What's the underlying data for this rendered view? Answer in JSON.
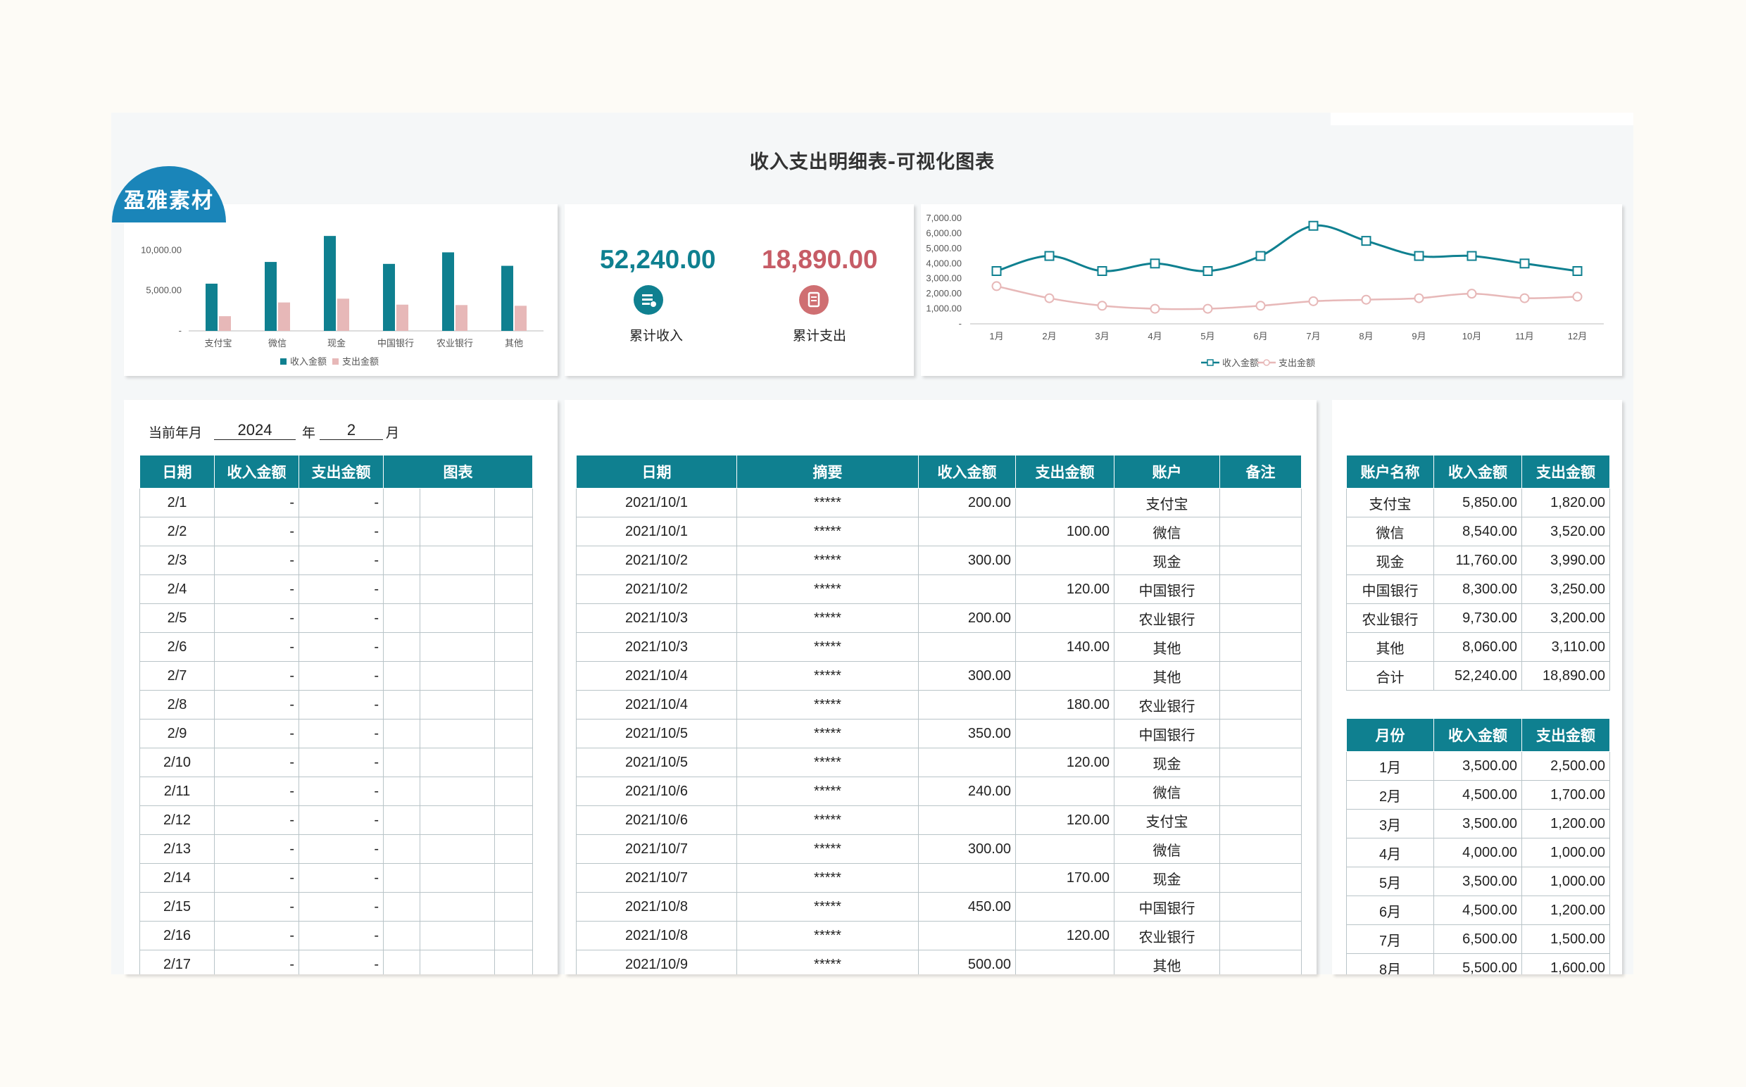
{
  "page": {
    "title": "收入支出明细表-可视化图表",
    "logo_text": "盈雅素材"
  },
  "colors": {
    "teal": "#0f8090",
    "pink": "#e7b8b8",
    "income_kpi": "#0f8090",
    "expense_kpi": "#c65c66",
    "logo_blue": "#1a85b9"
  },
  "kpi": {
    "income": {
      "value": "52,240.00",
      "label": "累计收入",
      "icon": "wallet-icon"
    },
    "expense": {
      "value": "18,890.00",
      "label": "累计支出",
      "icon": "receipt-icon"
    }
  },
  "bar_chart": {
    "chart_data": {
      "type": "bar",
      "categories": [
        "支付宝",
        "微信",
        "现金",
        "中国银行",
        "农业银行",
        "其他"
      ],
      "series": [
        {
          "name": "收入金额",
          "values": [
            5850,
            8540,
            11760,
            8300,
            9730,
            8060
          ]
        },
        {
          "name": "支出金额",
          "values": [
            1820,
            3520,
            3990,
            3250,
            3200,
            3110
          ]
        }
      ],
      "ylim": [
        0,
        15000
      ],
      "yticks": [
        "-",
        "5,000.00",
        "10,000.00"
      ],
      "legend": "bottom"
    }
  },
  "line_chart": {
    "chart_data": {
      "type": "line",
      "categories": [
        "1月",
        "2月",
        "3月",
        "4月",
        "5月",
        "6月",
        "7月",
        "8月",
        "9月",
        "10月",
        "11月",
        "12月"
      ],
      "series": [
        {
          "name": "收入金额",
          "values": [
            3500,
            4500,
            3500,
            4000,
            3500,
            4500,
            6500,
            5500,
            4500,
            4500,
            4000,
            3500
          ]
        },
        {
          "name": "支出金额",
          "values": [
            2500,
            1700,
            1200,
            1000,
            1000,
            1200,
            1500,
            1600,
            1700,
            2000,
            1700,
            1800
          ]
        }
      ],
      "ylim": [
        0,
        7000
      ],
      "yticks": [
        "-",
        "1,000.00",
        "2,000.00",
        "3,000.00",
        "4,000.00",
        "5,000.00",
        "6,000.00",
        "7,000.00"
      ],
      "legend": "bottom"
    }
  },
  "daily": {
    "current_label": "当前年月",
    "year": "2024",
    "year_unit": "年",
    "month": "2",
    "month_unit": "月",
    "headers": [
      "日期",
      "收入金额",
      "支出金额",
      "图表"
    ],
    "rows": [
      [
        "2/1",
        "-",
        "-"
      ],
      [
        "2/2",
        "-",
        "-"
      ],
      [
        "2/3",
        "-",
        "-"
      ],
      [
        "2/4",
        "-",
        "-"
      ],
      [
        "2/5",
        "-",
        "-"
      ],
      [
        "2/6",
        "-",
        "-"
      ],
      [
        "2/7",
        "-",
        "-"
      ],
      [
        "2/8",
        "-",
        "-"
      ],
      [
        "2/9",
        "-",
        "-"
      ],
      [
        "2/10",
        "-",
        "-"
      ],
      [
        "2/11",
        "-",
        "-"
      ],
      [
        "2/12",
        "-",
        "-"
      ],
      [
        "2/13",
        "-",
        "-"
      ],
      [
        "2/14",
        "-",
        "-"
      ],
      [
        "2/15",
        "-",
        "-"
      ],
      [
        "2/16",
        "-",
        "-"
      ],
      [
        "2/17",
        "-",
        "-"
      ]
    ]
  },
  "details": {
    "headers": [
      "日期",
      "摘要",
      "收入金额",
      "支出金额",
      "账户",
      "备注"
    ],
    "rows": [
      [
        "2021/10/1",
        "*****",
        "200.00",
        "",
        "支付宝",
        ""
      ],
      [
        "2021/10/1",
        "*****",
        "",
        "100.00",
        "微信",
        ""
      ],
      [
        "2021/10/2",
        "*****",
        "300.00",
        "",
        "现金",
        ""
      ],
      [
        "2021/10/2",
        "*****",
        "",
        "120.00",
        "中国银行",
        ""
      ],
      [
        "2021/10/3",
        "*****",
        "200.00",
        "",
        "农业银行",
        ""
      ],
      [
        "2021/10/3",
        "*****",
        "",
        "140.00",
        "其他",
        ""
      ],
      [
        "2021/10/4",
        "*****",
        "300.00",
        "",
        "其他",
        ""
      ],
      [
        "2021/10/4",
        "*****",
        "",
        "180.00",
        "农业银行",
        ""
      ],
      [
        "2021/10/5",
        "*****",
        "350.00",
        "",
        "中国银行",
        ""
      ],
      [
        "2021/10/5",
        "*****",
        "",
        "120.00",
        "现金",
        ""
      ],
      [
        "2021/10/6",
        "*****",
        "240.00",
        "",
        "微信",
        ""
      ],
      [
        "2021/10/6",
        "*****",
        "",
        "120.00",
        "支付宝",
        ""
      ],
      [
        "2021/10/7",
        "*****",
        "300.00",
        "",
        "微信",
        ""
      ],
      [
        "2021/10/7",
        "*****",
        "",
        "170.00",
        "现金",
        ""
      ],
      [
        "2021/10/8",
        "*****",
        "450.00",
        "",
        "中国银行",
        ""
      ],
      [
        "2021/10/8",
        "*****",
        "",
        "120.00",
        "农业银行",
        ""
      ],
      [
        "2021/10/9",
        "*****",
        "500.00",
        "",
        "其他",
        ""
      ]
    ]
  },
  "accounts": {
    "headers": [
      "账户名称",
      "收入金额",
      "支出金额"
    ],
    "rows": [
      [
        "支付宝",
        "5,850.00",
        "1,820.00"
      ],
      [
        "微信",
        "8,540.00",
        "3,520.00"
      ],
      [
        "现金",
        "11,760.00",
        "3,990.00"
      ],
      [
        "中国银行",
        "8,300.00",
        "3,250.00"
      ],
      [
        "农业银行",
        "9,730.00",
        "3,200.00"
      ],
      [
        "其他",
        "8,060.00",
        "3,110.00"
      ],
      [
        "合计",
        "52,240.00",
        "18,890.00"
      ]
    ]
  },
  "monthly": {
    "headers": [
      "月份",
      "收入金额",
      "支出金额"
    ],
    "rows": [
      [
        "1月",
        "3,500.00",
        "2,500.00"
      ],
      [
        "2月",
        "4,500.00",
        "1,700.00"
      ],
      [
        "3月",
        "3,500.00",
        "1,200.00"
      ],
      [
        "4月",
        "4,000.00",
        "1,000.00"
      ],
      [
        "5月",
        "3,500.00",
        "1,000.00"
      ],
      [
        "6月",
        "4,500.00",
        "1,200.00"
      ],
      [
        "7月",
        "6,500.00",
        "1,500.00"
      ],
      [
        "8月",
        "5,500.00",
        "1,600.00"
      ]
    ]
  }
}
